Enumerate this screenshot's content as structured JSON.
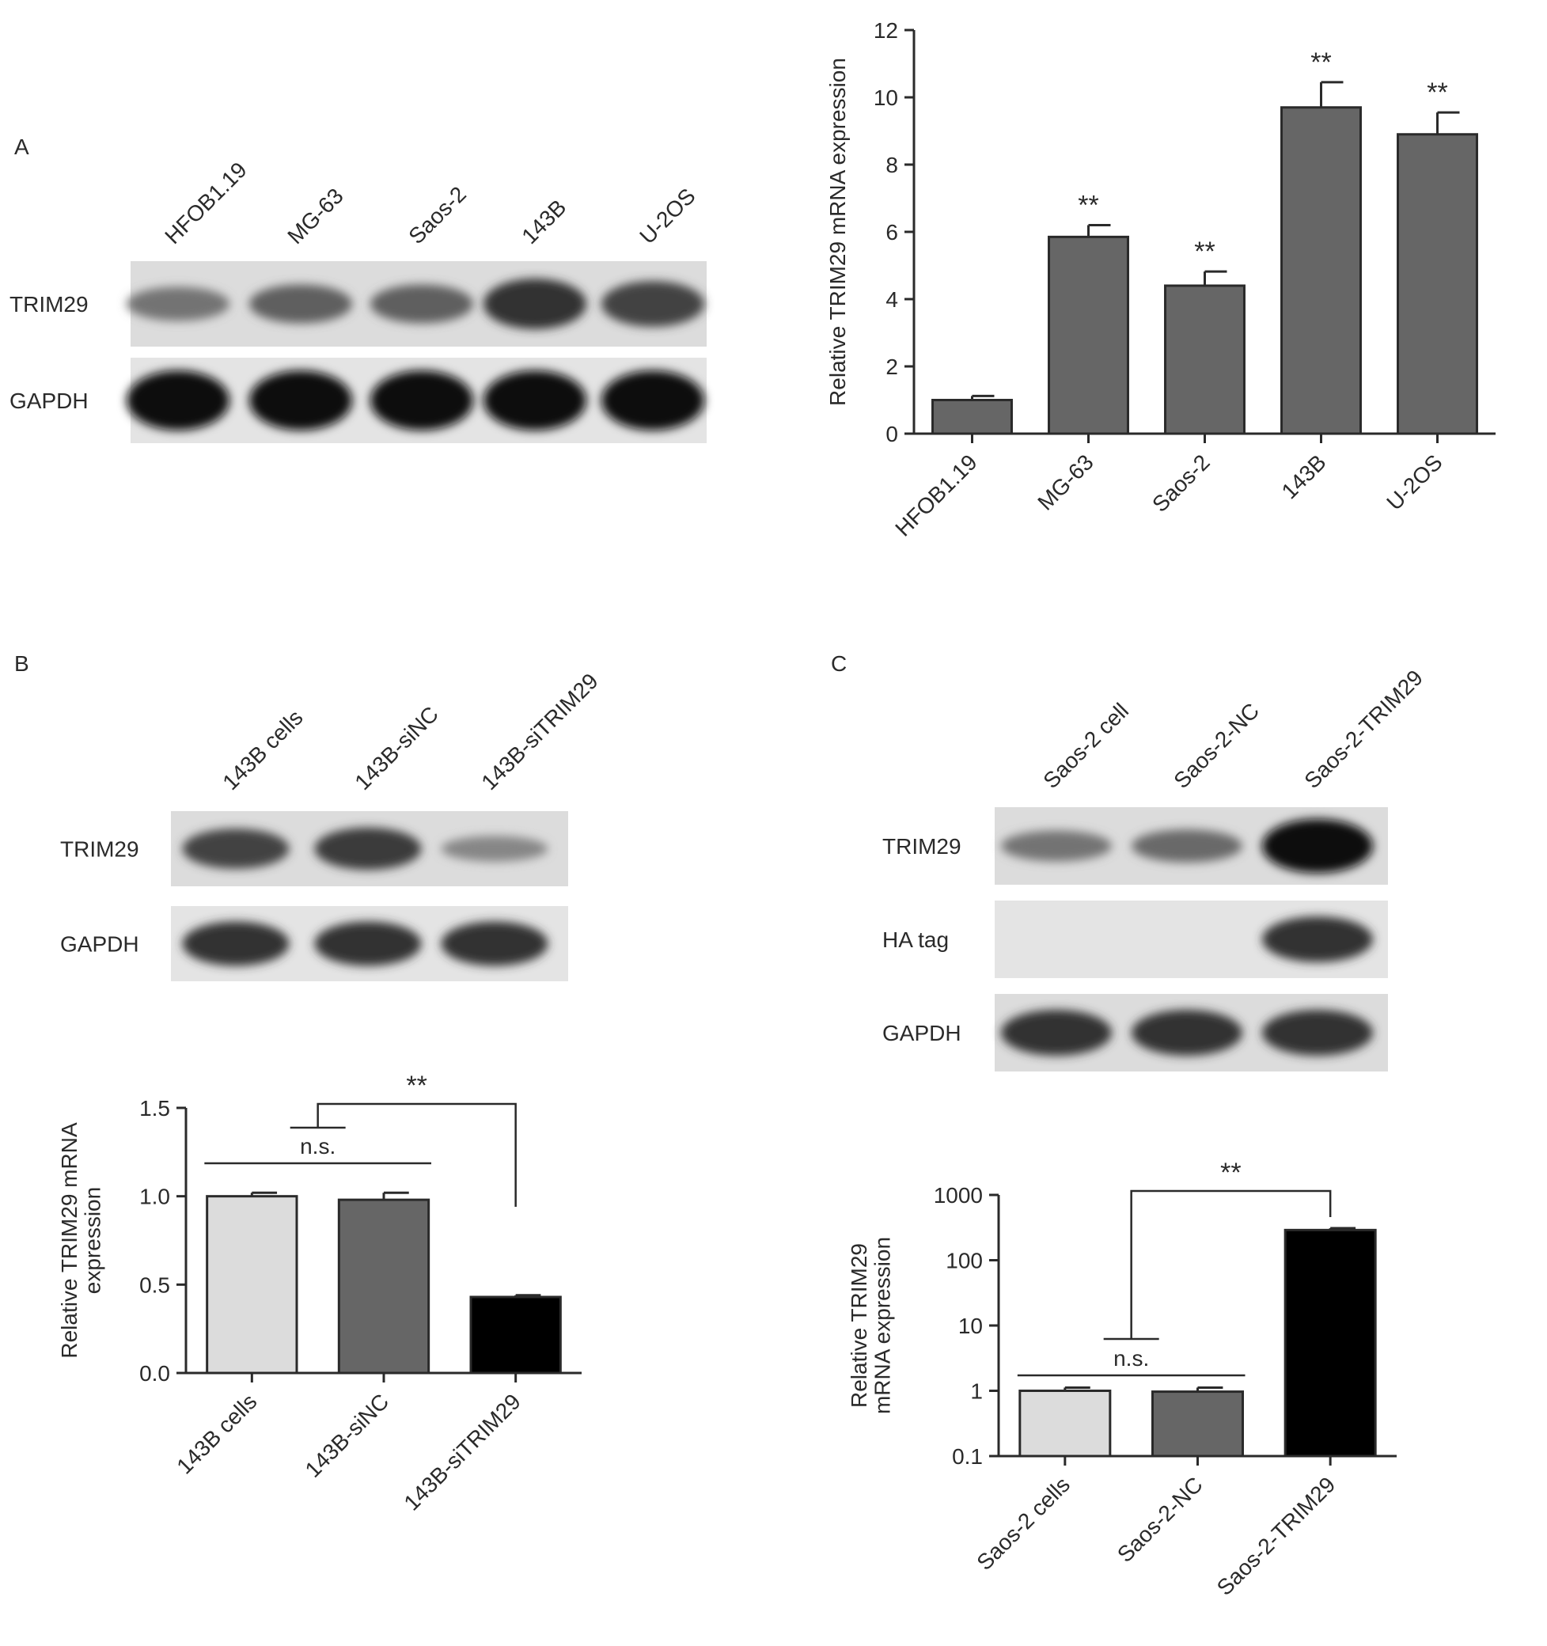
{
  "colors": {
    "blot_bg_1": "#dcdcdc",
    "blot_bg_2": "#e4e4e4",
    "bar_dark_gray": "#666666",
    "bar_light_gray": "#dcdcdc",
    "bar_black": "#000000"
  },
  "panelA": {
    "letter": "A",
    "blot": {
      "lanes": [
        "HFOB1.19",
        "MG-63",
        "Saos-2",
        "143B",
        "U-2OS"
      ],
      "rows": [
        "TRIM29",
        "GAPDH"
      ],
      "band_intensity": {
        "TRIM29": [
          0.45,
          0.55,
          0.55,
          0.8,
          0.7
        ],
        "GAPDH": [
          1.0,
          1.0,
          1.0,
          1.0,
          1.0
        ]
      }
    }
  },
  "panelB": {
    "letter": "B",
    "blot": {
      "lanes": [
        "143B cells",
        "143B-siNC",
        "143B-siTRIM29"
      ],
      "rows": [
        "TRIM29",
        "GAPDH"
      ],
      "band_intensity": {
        "TRIM29": [
          0.7,
          0.75,
          0.35
        ],
        "GAPDH": [
          0.8,
          0.8,
          0.8
        ]
      }
    },
    "annotations": {
      "ns": "n.s.",
      "stars": "**"
    }
  },
  "panelC": {
    "letter": "C",
    "blot": {
      "lanes": [
        "Saos-2 cell",
        "Saos-2-NC",
        "Saos-2-TRIM29"
      ],
      "rows": [
        "TRIM29",
        "HA tag",
        "GAPDH"
      ],
      "band_intensity": {
        "TRIM29": [
          0.45,
          0.5,
          1.0
        ],
        "HA tag": [
          0.0,
          0.0,
          0.8
        ],
        "GAPDH": [
          0.8,
          0.8,
          0.8
        ]
      }
    },
    "annotations": {
      "ns": "n.s.",
      "stars": "**"
    }
  },
  "chart_data": [
    {
      "panel": "A",
      "type": "bar",
      "categories": [
        "HFOB1.19",
        "MG-63",
        "Saos-2",
        "143B",
        "U-2OS"
      ],
      "values": [
        1.0,
        5.85,
        4.4,
        9.7,
        8.9
      ],
      "errors": [
        0.12,
        0.35,
        0.42,
        0.75,
        0.65
      ],
      "significance": [
        "",
        "**",
        "**",
        "**",
        "**"
      ],
      "ylabel": "Relative TRIM29 mRNA expression",
      "ylim": [
        0,
        12
      ],
      "yticks": [
        0,
        2,
        4,
        6,
        8,
        10,
        12
      ],
      "bar_colors": [
        "#666666",
        "#666666",
        "#666666",
        "#666666",
        "#666666"
      ],
      "grid": false
    },
    {
      "panel": "B",
      "type": "bar",
      "categories": [
        "143B cells",
        "143B-siNC",
        "143B-siTRIM29"
      ],
      "values": [
        1.0,
        0.98,
        0.43
      ],
      "errors": [
        0.02,
        0.04,
        0.01
      ],
      "ylabel_lines": [
        "Relative TRIM29 mRNA",
        "expression"
      ],
      "ylim": [
        0,
        1.5
      ],
      "yticks": [
        "0.0",
        "0.5",
        "1.0",
        "1.5"
      ],
      "ytick_values": [
        0,
        0.5,
        1.0,
        1.5
      ],
      "bar_colors": [
        "#dcdcdc",
        "#666666",
        "#000000"
      ],
      "grid": false
    },
    {
      "panel": "C",
      "type": "bar",
      "scale": "log",
      "categories": [
        "Saos-2 cells",
        "Saos-2-NC",
        "Saos-2-TRIM29"
      ],
      "values": [
        1.0,
        0.97,
        290
      ],
      "errors": [
        0.12,
        0.15,
        20
      ],
      "ylabel_lines": [
        "Relative TRIM29",
        "mRNA expression"
      ],
      "ylim": [
        0.1,
        1000
      ],
      "yticks": [
        "0.1",
        "1",
        "10",
        "100",
        "1000"
      ],
      "ytick_values": [
        0.1,
        1,
        10,
        100,
        1000
      ],
      "bar_colors": [
        "#dcdcdc",
        "#666666",
        "#000000"
      ],
      "grid": false
    }
  ]
}
